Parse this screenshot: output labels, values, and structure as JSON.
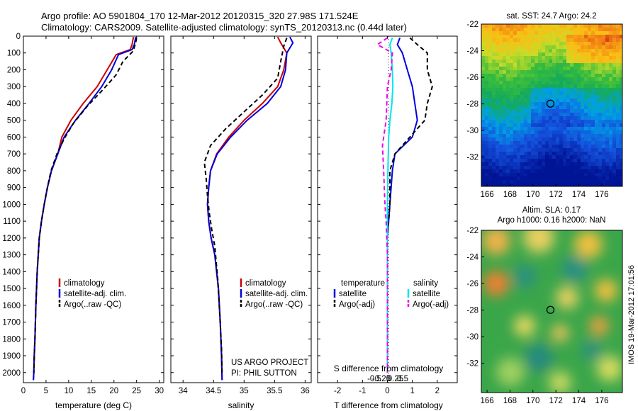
{
  "header": {
    "line1": "Argo profile: AO 5901804_170 12-Mar-2012 20120315_320 27.98S 171.524E",
    "line2": "Climatology: CARS2009. Satellite-adjusted climatology: synTS_20120313.nc (0.44d later)"
  },
  "credits": {
    "line1": "US ARGO PROJECT",
    "line2": "PI: PHIL SUTTON"
  },
  "watermark": "IMOS 19-Mar-2012 17:01:56",
  "colors": {
    "climatology": "#cc0000",
    "satellite": "#0000dd",
    "argo": "#000000",
    "cyan": "#00e5ee",
    "magenta": "#ee00ee"
  },
  "chart_data": [
    {
      "id": "temperature",
      "type": "line",
      "xlabel": "temperature (deg C)",
      "xlim": [
        0,
        31
      ],
      "xticks": [
        0,
        5,
        10,
        15,
        20,
        25,
        30
      ],
      "ylim": [
        2060,
        0
      ],
      "yticks": [
        0,
        100,
        200,
        300,
        400,
        500,
        600,
        700,
        800,
        900,
        1000,
        1100,
        1200,
        1300,
        1400,
        1500,
        1600,
        1700,
        1800,
        1900,
        2000
      ],
      "legend": [
        "climatology",
        "satellite-adj. clim.",
        "Argo(..raw -QC)"
      ],
      "series": [
        {
          "name": "climatology",
          "style": "solid",
          "color": "climatology",
          "x": [
            24.3,
            24,
            23.6,
            20.5,
            18.5,
            16.3,
            13.2,
            10.5,
            8.5,
            7.6,
            6.2,
            5.3,
            4.6,
            4.0,
            3.5,
            3.05,
            2.75,
            2.55,
            2.4,
            2.3,
            2.2
          ],
          "y": [
            5,
            50,
            80,
            110,
            200,
            300,
            400,
            500,
            600,
            700,
            800,
            900,
            1000,
            1100,
            1200,
            1400,
            1600,
            1800,
            1900,
            2000,
            2045
          ]
        },
        {
          "name": "satellite-adj. clim.",
          "style": "solid",
          "color": "satellite",
          "x": [
            24.8,
            24.5,
            24,
            21,
            19.5,
            17.3,
            14.5,
            11.5,
            9,
            7.6,
            6.2,
            5.3,
            4.6,
            4.0,
            3.5,
            3.05,
            2.75,
            2.55,
            2.4,
            2.3,
            2.2
          ],
          "y": [
            5,
            50,
            80,
            110,
            200,
            300,
            400,
            500,
            600,
            700,
            800,
            900,
            1000,
            1100,
            1200,
            1400,
            1600,
            1800,
            1900,
            2000,
            2045
          ]
        },
        {
          "name": "Argo(..raw -QC)",
          "style": "dashed",
          "color": "argo",
          "x": [
            25,
            24.8,
            24.2,
            22,
            20.5,
            17.5,
            14,
            11,
            9,
            7.4,
            6.1,
            5.3,
            4.6,
            4.0,
            3.5,
            3.05,
            2.75,
            2.55,
            2.4,
            2.3
          ],
          "y": [
            10,
            40,
            90,
            150,
            230,
            320,
            420,
            520,
            610,
            700,
            800,
            900,
            1000,
            1100,
            1200,
            1400,
            1600,
            1800,
            1900,
            2000
          ]
        }
      ]
    },
    {
      "id": "salinity",
      "type": "line",
      "xlabel": "salinity",
      "xlim": [
        33.8,
        36.1
      ],
      "xticks": [
        34,
        34.5,
        35,
        35.5,
        36
      ],
      "ylim": [
        2060,
        0
      ],
      "legend": [
        "climatology",
        "satellite-adj. clim.",
        "Argo(..raw -QC)"
      ],
      "series": [
        {
          "name": "climatology",
          "style": "solid",
          "color": "climatology",
          "x": [
            35.55,
            35.6,
            35.7,
            35.65,
            35.55,
            35.3,
            35.0,
            34.75,
            34.55,
            34.45,
            34.42,
            34.4,
            34.42,
            34.46,
            34.52,
            34.58,
            34.61,
            34.63,
            34.64
          ],
          "y": [
            5,
            40,
            100,
            200,
            300,
            400,
            500,
            600,
            700,
            800,
            900,
            1000,
            1100,
            1200,
            1300,
            1500,
            1700,
            1900,
            2045
          ]
        },
        {
          "name": "satellite-adj. clim.",
          "style": "solid",
          "color": "satellite",
          "x": [
            35.75,
            35.8,
            35.7,
            35.68,
            35.6,
            35.38,
            35.05,
            34.78,
            34.56,
            34.45,
            34.42,
            34.4,
            34.42,
            34.46,
            34.52,
            34.58,
            34.61,
            34.63,
            34.64
          ],
          "y": [
            5,
            40,
            100,
            200,
            300,
            400,
            500,
            600,
            700,
            800,
            900,
            1000,
            1100,
            1200,
            1300,
            1500,
            1700,
            1900,
            2045
          ]
        },
        {
          "name": "Argo(..raw -QC)",
          "style": "dashed",
          "color": "argo",
          "x": [
            35.7,
            35.65,
            35.6,
            35.55,
            35.3,
            35.0,
            34.7,
            34.45,
            34.35,
            34.38,
            34.4,
            34.43,
            34.47,
            34.52,
            34.57,
            34.6,
            34.63,
            34.64
          ],
          "y": [
            10,
            60,
            150,
            250,
            350,
            450,
            550,
            650,
            750,
            850,
            950,
            1050,
            1150,
            1250,
            1450,
            1650,
            1850,
            2000
          ]
        }
      ]
    },
    {
      "id": "differences",
      "type": "line",
      "xlabel": "T difference from climatology",
      "x2label": "S difference from climatology",
      "xlim": [
        -2.8,
        2.8
      ],
      "xticks": [
        -2,
        -1,
        0,
        1,
        2
      ],
      "x2ticks": [
        -0.5,
        -0.25,
        0,
        0.25,
        0.5
      ],
      "ylim": [
        2060,
        0
      ],
      "legend_left_title": "temperature",
      "legend_right_title": "salinity",
      "legend_left": [
        "satellite",
        "Argo(-adj)"
      ],
      "legend_right": [
        "satellite",
        "Argo(-adj)"
      ],
      "series": [
        {
          "name": "temperature satellite",
          "style": "solid",
          "color": "satellite",
          "x": [
            0.5,
            0.4,
            0.6,
            0.8,
            1.0,
            1.1,
            1.2,
            1.0,
            0.3,
            0.2,
            0.1,
            0.0,
            0.0,
            0.0,
            0.0
          ],
          "y": [
            10,
            50,
            100,
            200,
            300,
            400,
            500,
            600,
            700,
            800,
            1000,
            1200,
            1500,
            1800,
            2000
          ]
        },
        {
          "name": "temperature Argo(-adj)",
          "style": "dashed",
          "color": "argo",
          "x": [
            0.9,
            1.2,
            1.6,
            1.6,
            1.8,
            1.6,
            1.5,
            0.9,
            0.3,
            0.1,
            0.1,
            0.0,
            0.0,
            0.0
          ],
          "y": [
            10,
            50,
            100,
            200,
            300,
            400,
            500,
            600,
            700,
            800,
            1000,
            1200,
            1500,
            2000
          ]
        },
        {
          "name": "salinity satellite",
          "style": "solid",
          "color": "cyan",
          "x": [
            0.2,
            0.1,
            0.15,
            0.2,
            0.22,
            0.18,
            0.1,
            0.05,
            0.02,
            0.0,
            0.0,
            0.0,
            0.0
          ],
          "y": [
            10,
            50,
            100,
            200,
            300,
            400,
            500,
            600,
            800,
            1000,
            1200,
            1500,
            2000
          ]
        },
        {
          "name": "salinity Argo(-adj)",
          "style": "dashed",
          "color": "magenta",
          "x": [
            0.0,
            -0.4,
            0.2,
            0.15,
            0.0,
            -0.05,
            -0.2,
            -0.15,
            -0.1,
            -0.05,
            0.0,
            0.0,
            0.0
          ],
          "y": [
            10,
            50,
            100,
            200,
            300,
            500,
            650,
            800,
            1000,
            1100,
            1300,
            1500,
            2000
          ]
        }
      ]
    },
    {
      "id": "sst_map",
      "type": "heatmap",
      "title": "sat. SST: 24.7  Argo: 24.2",
      "xlim": [
        165.5,
        177.8
      ],
      "ylim": [
        -34.2,
        -22
      ],
      "xticks": [
        166,
        168,
        170,
        172,
        174,
        176
      ],
      "yticks": [
        -22,
        -24,
        -26,
        -28,
        -30,
        -32
      ],
      "marker": {
        "lon": 171.524,
        "lat": -27.98
      }
    },
    {
      "id": "sla_map",
      "type": "heatmap",
      "title_line1": "Altim. SLA: 0.17",
      "title_line2": "Argo h1000: 0.16  h2000: NaN",
      "xlim": [
        165.5,
        177.8
      ],
      "ylim": [
        -34.2,
        -22
      ],
      "xticks": [
        166,
        168,
        170,
        172,
        174,
        176
      ],
      "yticks": [
        -22,
        -24,
        -26,
        -28,
        -30,
        -32
      ],
      "marker": {
        "lon": 171.524,
        "lat": -27.98
      }
    }
  ]
}
